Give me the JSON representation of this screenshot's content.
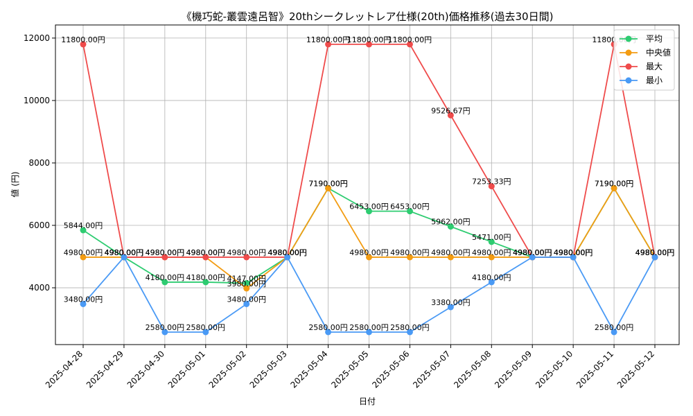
{
  "chart_data": {
    "type": "line",
    "title": "《機巧蛇-叢雲遠呂智》20thシークレットレア仕様(20th)価格推移(過去30日間)",
    "xlabel": "日付",
    "ylabel": "値 (円)",
    "ylim": [
      2180,
      12420
    ],
    "yticks": [
      4000,
      6000,
      8000,
      10000,
      12000
    ],
    "ytick_labels": [
      "4000",
      "6000",
      "8000",
      "10000",
      "12000"
    ],
    "grid": true,
    "legend_position": "top-right",
    "categories": [
      "2025-04-28",
      "2025-04-29",
      "2025-04-30",
      "2025-05-01",
      "2025-05-02",
      "2025-05-03",
      "2025-05-04",
      "2025-05-05",
      "2025-05-06",
      "2025-05-07",
      "2025-05-08",
      "2025-05-09",
      "2025-05-10",
      "2025-05-11",
      "2025-05-12"
    ],
    "series": [
      {
        "name": "平均",
        "color": "#2ecc71",
        "values": [
          5844,
          4980,
          4180,
          4180,
          4147,
          4980,
          7190,
          6453,
          6453,
          5962,
          5471,
          4980,
          4980,
          7190,
          4980
        ],
        "labels": [
          "5844.00円",
          "4980.00円",
          "4180.00円",
          "4180.00円",
          "4147.00円",
          "4980.00円",
          "7190.00円",
          "6453.00円",
          "6453.00円",
          "5962.00円",
          "5471.00円",
          "4980.00円",
          "4980.00円",
          "7190.00円",
          "4980.00円"
        ]
      },
      {
        "name": "中央値",
        "color": "#f39c12",
        "values": [
          4980,
          4980,
          4980,
          4980,
          3980,
          4980,
          7190,
          4980,
          4980,
          4980,
          4980,
          4980,
          4980,
          7190,
          4980
        ],
        "labels": [
          "4980.00円",
          "4980.00円",
          "4980.00円",
          "4980.00円",
          "3980.00円",
          "4980.00円",
          "7190.00円",
          "4980.00円",
          "4980.00円",
          "4980.00円",
          "4980.00円",
          "4980.00円",
          "4980.00円",
          "7190.00円",
          "4980.00円"
        ]
      },
      {
        "name": "最大",
        "color": "#ef4b4b",
        "values": [
          11800,
          4980,
          4980,
          4980,
          4980,
          4980,
          11800,
          11800,
          11800,
          9526.67,
          7253.33,
          4980,
          4980,
          11800,
          4980
        ],
        "labels": [
          "11800.00円",
          "4980.00円",
          "4980.00円",
          "4980.00円",
          "4980.00円",
          "4980.00円",
          "11800.00円",
          "11800.00円",
          "11800.00円",
          "9526.67円",
          "7253.33円",
          "4980.00円",
          "4980.00円",
          "11800.00円",
          "4980.00円"
        ]
      },
      {
        "name": "最小",
        "color": "#4a9af5",
        "values": [
          3480,
          4980,
          2580,
          2580,
          3480,
          4980,
          2580,
          2580,
          2580,
          3380,
          4180,
          4980,
          4980,
          2580,
          4980
        ],
        "labels": [
          "3480.00円",
          "4980.00円",
          "2580.00円",
          "2580.00円",
          "3480.00円",
          "4980.00円",
          "2580.00円",
          "2580.00円",
          "2580.00円",
          "3380.00円",
          "4180.00円",
          "4980.00円",
          "4980.00円",
          "2580.00円",
          "4980.00円"
        ]
      }
    ]
  }
}
